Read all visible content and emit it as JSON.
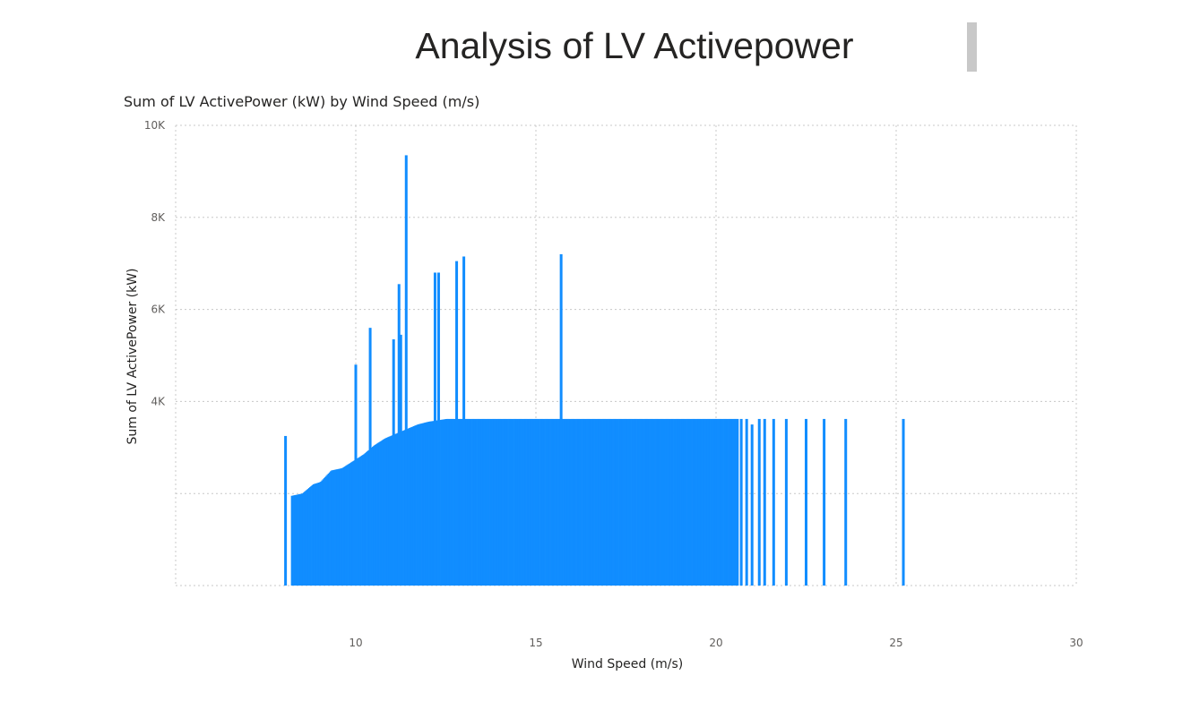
{
  "page": {
    "title": "Analysis of LV Activepower"
  },
  "chart_data": {
    "type": "bar",
    "title": "Sum of LV ActivePower (kW) by Wind Speed (m/s)",
    "xlabel": "Wind Speed (m/s)",
    "ylabel": "Sum of LV ActivePower (kW)",
    "xlim": [
      5,
      30
    ],
    "ylim": [
      0,
      10000
    ],
    "x_ticks": [
      10,
      15,
      20,
      25,
      30
    ],
    "x_tick_labels": [
      "10",
      "15",
      "20",
      "25",
      "30"
    ],
    "y_ticks": [
      4000,
      6000,
      8000,
      10000
    ],
    "y_tick_labels": [
      "4K",
      "6K",
      "8K",
      "10K"
    ],
    "grid": true,
    "bar_color": "#118dff",
    "ramp": [
      [
        8.2,
        1950
      ],
      [
        8.5,
        2000
      ],
      [
        8.8,
        2200
      ],
      [
        9.0,
        2250
      ],
      [
        9.3,
        2500
      ],
      [
        9.6,
        2550
      ],
      [
        9.9,
        2700
      ],
      [
        10.2,
        2850
      ],
      [
        10.5,
        3050
      ],
      [
        10.8,
        3200
      ],
      [
        11.1,
        3300
      ],
      [
        11.4,
        3400
      ],
      [
        11.7,
        3500
      ],
      [
        12.0,
        3560
      ],
      [
        12.5,
        3620
      ],
      [
        20.6,
        3620
      ]
    ],
    "tail": [
      [
        20.7,
        3620
      ],
      [
        20.85,
        3620
      ],
      [
        21.0,
        3500
      ],
      [
        21.2,
        3620
      ],
      [
        21.35,
        3620
      ],
      [
        21.6,
        3620
      ],
      [
        21.95,
        3620
      ],
      [
        22.5,
        3620
      ],
      [
        23.0,
        3620
      ],
      [
        23.6,
        3620
      ],
      [
        25.2,
        3620
      ]
    ],
    "spikes": [
      [
        8.05,
        3250
      ],
      [
        10.0,
        4800
      ],
      [
        10.4,
        5600
      ],
      [
        11.05,
        5350
      ],
      [
        11.2,
        6550
      ],
      [
        11.25,
        5450
      ],
      [
        11.4,
        9350
      ],
      [
        12.2,
        6800
      ],
      [
        12.3,
        6800
      ],
      [
        12.8,
        7050
      ],
      [
        13.0,
        7150
      ],
      [
        15.7,
        7200
      ]
    ]
  }
}
